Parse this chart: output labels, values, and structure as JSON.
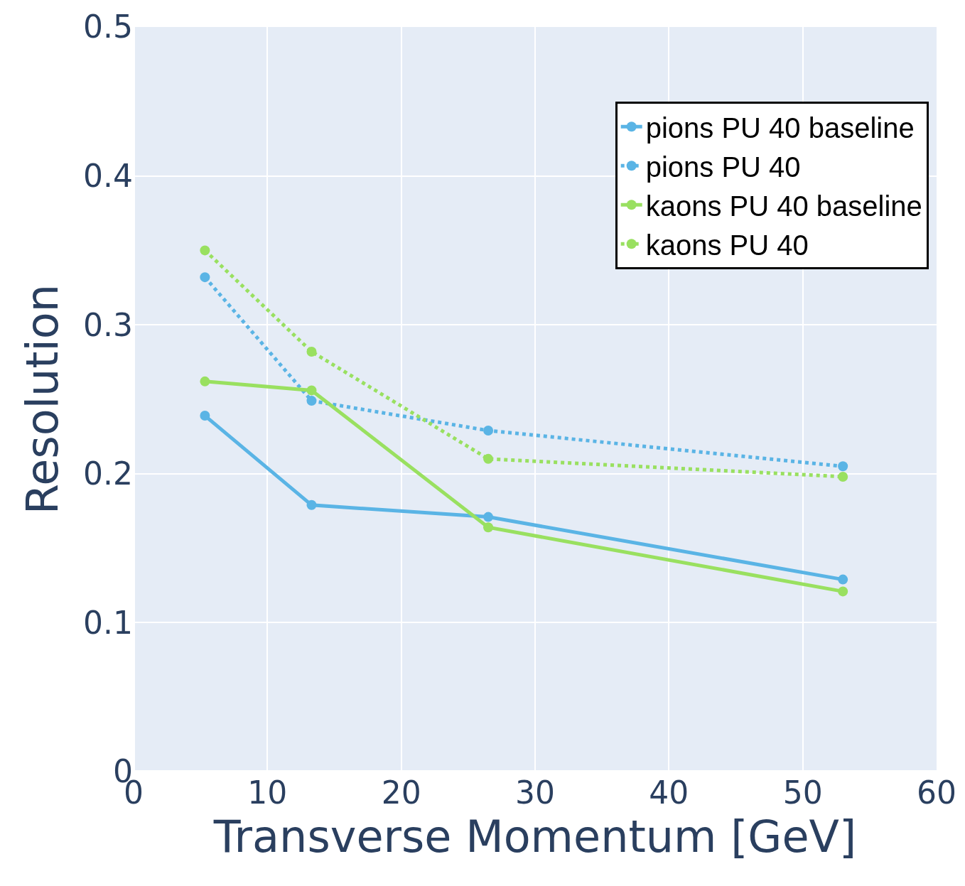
{
  "chart_data": {
    "type": "line",
    "xlabel": "Transverse Momentum [GeV]",
    "ylabel": "Resolution",
    "x": [
      5.33,
      13.3,
      26.5,
      53.0
    ],
    "series": [
      {
        "name": "pions PU 40 baseline",
        "color": "#5ab4e5",
        "line_style": "solid",
        "values": [
          0.239,
          0.179,
          0.171,
          0.129
        ]
      },
      {
        "name": "pions PU 40",
        "color": "#5ab4e5",
        "line_style": "dotted",
        "values": [
          0.332,
          0.249,
          0.229,
          0.205
        ]
      },
      {
        "name": "kaons PU 40 baseline",
        "color": "#99e060",
        "line_style": "solid",
        "values": [
          0.262,
          0.256,
          0.164,
          0.121
        ]
      },
      {
        "name": "kaons PU 40",
        "color": "#99e060",
        "line_style": "dotted",
        "values": [
          0.35,
          0.282,
          0.21,
          0.198
        ]
      }
    ],
    "xlim": [
      0,
      60
    ],
    "xticks": [
      0,
      10,
      20,
      30,
      40,
      50,
      60
    ],
    "ylim": [
      0,
      0.5
    ],
    "yticks": [
      0,
      0.1,
      0.2,
      0.3,
      0.4,
      0.5
    ],
    "grid": true,
    "legend": "top right",
    "marker": "circle"
  }
}
